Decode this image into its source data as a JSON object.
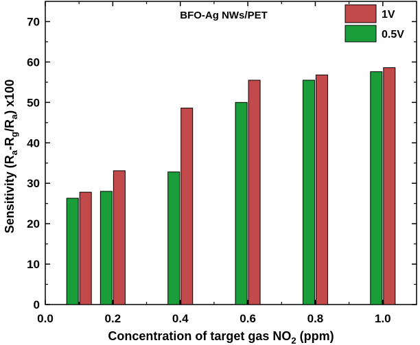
{
  "chart_data": {
    "type": "bar",
    "title": "BFO-Ag NWs/PET",
    "xlabel": {
      "main": "Concentration of target gas NO",
      "sub": "2",
      "tail": " (ppm)"
    },
    "ylabel": {
      "p1": "Sensitivity (R",
      "s1": "a",
      "p2": "-R",
      "s2": "g",
      "p3": "/R",
      "s3": "a",
      "p4": ") x100"
    },
    "xlim": [
      0.0,
      1.1
    ],
    "ylim": [
      0,
      75
    ],
    "xticks": [
      "0.0",
      "0.2",
      "0.4",
      "0.6",
      "0.8",
      "1.0"
    ],
    "yticks": [
      "0",
      "10",
      "20",
      "30",
      "40",
      "50",
      "60",
      "70"
    ],
    "categories": [
      0.1,
      0.2,
      0.4,
      0.6,
      0.8,
      1.0
    ],
    "series": [
      {
        "name": "0.5V",
        "color": "#1a9e3a",
        "values": [
          26.3,
          28.0,
          32.8,
          50.0,
          55.5,
          57.6
        ]
      },
      {
        "name": "1V",
        "color": "#c24a4a",
        "values": [
          27.8,
          33.1,
          48.6,
          55.5,
          56.8,
          58.6
        ]
      }
    ],
    "legend": {
      "position": "top-right",
      "order": [
        "1V",
        "0.5V"
      ]
    }
  }
}
